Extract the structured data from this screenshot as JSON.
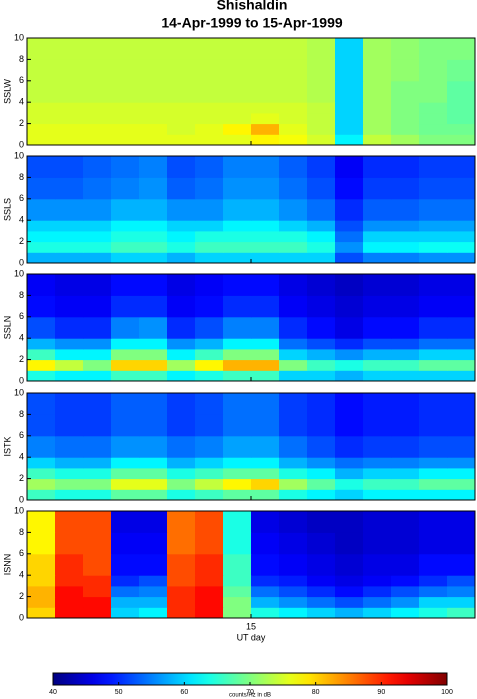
{
  "chart_data": {
    "type": "heatmap",
    "title": "Shishaldin",
    "subtitle": "14-Apr-1999 to 15-Apr-1999",
    "xlabel": "UT day",
    "xlim": [
      14,
      16
    ],
    "xticks": [
      15
    ],
    "ylim": [
      0,
      10
    ],
    "yticks": [
      0,
      2,
      4,
      6,
      8,
      10
    ],
    "ybins": [
      0,
      1,
      2,
      3,
      4,
      6,
      8,
      10
    ],
    "colorbar": {
      "clim": [
        40,
        100
      ],
      "ticks": [
        40,
        50,
        60,
        70,
        80,
        90,
        100
      ],
      "label": "counts/Hz in dB"
    },
    "panels": [
      {
        "ylabel": "SSLW",
        "z": [
          [
            76,
            76,
            76,
            76,
            76,
            76,
            76,
            76,
            78,
            77,
            75,
            62,
            74,
            72,
            70,
            70
          ],
          [
            76,
            76,
            76,
            76,
            76,
            75,
            76,
            78,
            82,
            76,
            74,
            60,
            72,
            70,
            69,
            69
          ],
          [
            75,
            75,
            75,
            75,
            75,
            75,
            75,
            75,
            76,
            75,
            74,
            60,
            72,
            70,
            69,
            68
          ],
          [
            75,
            75,
            75,
            75,
            75,
            75,
            75,
            75,
            75,
            75,
            74,
            60,
            72,
            70,
            69,
            68
          ],
          [
            74,
            74,
            74,
            74,
            74,
            74,
            74,
            74,
            74,
            74,
            73,
            60,
            72,
            70,
            70,
            68
          ],
          [
            74,
            74,
            74,
            74,
            74,
            74,
            74,
            74,
            74,
            74,
            73,
            60,
            72,
            71,
            70,
            69
          ],
          [
            74,
            74,
            74,
            74,
            74,
            74,
            74,
            74,
            74,
            74,
            73,
            60,
            72,
            71,
            70,
            70
          ]
        ]
      },
      {
        "ylabel": "SSLS",
        "z": [
          [
            58,
            58,
            58,
            60,
            60,
            58,
            60,
            60,
            60,
            60,
            60,
            52,
            55,
            55,
            56,
            56
          ],
          [
            64,
            64,
            64,
            66,
            66,
            64,
            66,
            66,
            66,
            66,
            64,
            56,
            62,
            62,
            63,
            63
          ],
          [
            62,
            62,
            62,
            64,
            64,
            62,
            64,
            64,
            64,
            64,
            62,
            54,
            60,
            60,
            60,
            60
          ],
          [
            60,
            60,
            60,
            62,
            62,
            60,
            60,
            62,
            62,
            60,
            58,
            52,
            56,
            56,
            57,
            57
          ],
          [
            56,
            56,
            56,
            58,
            58,
            56,
            56,
            58,
            58,
            56,
            54,
            50,
            53,
            53,
            54,
            54
          ],
          [
            53,
            53,
            54,
            55,
            56,
            53,
            54,
            56,
            56,
            54,
            52,
            48,
            51,
            51,
            52,
            52
          ],
          [
            52,
            52,
            53,
            54,
            55,
            52,
            53,
            55,
            55,
            53,
            51,
            47,
            50,
            50,
            51,
            51
          ]
        ]
      },
      {
        "ylabel": "SSLN",
        "z": [
          [
            64,
            62,
            62,
            66,
            66,
            62,
            64,
            66,
            66,
            60,
            60,
            58,
            60,
            60,
            60,
            60
          ],
          [
            78,
            74,
            70,
            80,
            80,
            72,
            78,
            82,
            82,
            70,
            66,
            64,
            66,
            66,
            68,
            68
          ],
          [
            66,
            62,
            62,
            70,
            70,
            62,
            66,
            70,
            70,
            60,
            58,
            56,
            58,
            58,
            60,
            60
          ],
          [
            58,
            56,
            56,
            62,
            62,
            56,
            58,
            62,
            62,
            54,
            52,
            50,
            52,
            52,
            54,
            54
          ],
          [
            52,
            50,
            50,
            55,
            56,
            50,
            52,
            55,
            55,
            50,
            48,
            46,
            48,
            48,
            50,
            50
          ],
          [
            48,
            47,
            47,
            50,
            50,
            47,
            48,
            50,
            50,
            47,
            46,
            45,
            46,
            46,
            47,
            47
          ],
          [
            47,
            46,
            46,
            48,
            48,
            46,
            47,
            48,
            48,
            46,
            45,
            44,
            45,
            45,
            46,
            46
          ]
        ]
      },
      {
        "ylabel": "ISTK",
        "z": [
          [
            66,
            64,
            64,
            68,
            68,
            64,
            66,
            68,
            68,
            64,
            62,
            60,
            62,
            62,
            62,
            62
          ],
          [
            72,
            70,
            70,
            76,
            76,
            70,
            74,
            78,
            80,
            72,
            68,
            64,
            66,
            66,
            68,
            68
          ],
          [
            66,
            64,
            64,
            68,
            68,
            64,
            66,
            68,
            68,
            64,
            62,
            58,
            60,
            60,
            62,
            62
          ],
          [
            60,
            58,
            58,
            62,
            62,
            58,
            60,
            62,
            62,
            58,
            56,
            54,
            55,
            55,
            56,
            56
          ],
          [
            55,
            54,
            54,
            56,
            56,
            54,
            55,
            57,
            57,
            54,
            52,
            50,
            51,
            51,
            52,
            52
          ],
          [
            52,
            51,
            51,
            53,
            53,
            51,
            52,
            54,
            54,
            51,
            50,
            48,
            49,
            49,
            50,
            50
          ],
          [
            52,
            51,
            51,
            53,
            53,
            51,
            52,
            54,
            54,
            51,
            50,
            48,
            49,
            49,
            50,
            50
          ]
        ]
      },
      {
        "ylabel": "ISNN",
        "z": [
          [
            80,
            92,
            92,
            60,
            62,
            90,
            92,
            70,
            64,
            62,
            60,
            58,
            60,
            62,
            64,
            66
          ],
          [
            82,
            92,
            92,
            58,
            58,
            90,
            92,
            70,
            58,
            56,
            54,
            52,
            54,
            56,
            60,
            60
          ],
          [
            82,
            92,
            90,
            54,
            55,
            90,
            92,
            68,
            54,
            52,
            50,
            48,
            50,
            52,
            54,
            55
          ],
          [
            80,
            90,
            90,
            50,
            52,
            88,
            90,
            66,
            50,
            49,
            47,
            46,
            47,
            48,
            50,
            52
          ],
          [
            80,
            90,
            88,
            48,
            48,
            88,
            90,
            66,
            48,
            47,
            46,
            45,
            46,
            46,
            48,
            48
          ],
          [
            78,
            88,
            88,
            47,
            47,
            86,
            88,
            64,
            47,
            46,
            45,
            44,
            45,
            45,
            46,
            46
          ],
          [
            78,
            88,
            88,
            46,
            46,
            86,
            88,
            64,
            46,
            45,
            44,
            44,
            45,
            45,
            46,
            46
          ]
        ]
      }
    ]
  }
}
